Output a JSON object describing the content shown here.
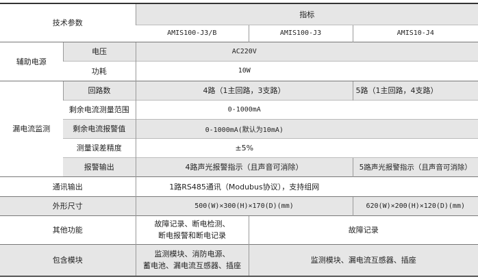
{
  "header": {
    "param": "技术参数",
    "indicator": "指标",
    "models": [
      "AMIS100-J3/B",
      "AMIS100-J3",
      "AMIS10-J4"
    ]
  },
  "aux_power": {
    "label": "辅助电源",
    "voltage_label": "电压",
    "voltage": "AC220V",
    "power_label": "功耗",
    "power": "10W"
  },
  "leakage": {
    "label": "漏电流监测",
    "loops_label": "回路数",
    "loops_a": "4路（1主回路，3支路）",
    "loops_b": "5路（1主回路，4支路）",
    "range_label": "剩余电流测量范围",
    "range": "0-1000mA",
    "alarm_value_label": "剩余电流报警值",
    "alarm_value": "0-1000mA(默认为10mA)",
    "accuracy_label": "测量误差精度",
    "accuracy": "±5%",
    "alarm_out_label": "报警输出",
    "alarm_out_a": "4路声光报警指示（且声音可消除）",
    "alarm_out_b": "5路声光报警指示（且声音可消除）"
  },
  "comm": {
    "label": "通讯输出",
    "value": "1路RS485通讯（Modubus协议），支持组网"
  },
  "size": {
    "label": "外形尺寸",
    "a": "500(W)×300(H)×170(D)(mm)",
    "b": "620(W)×200(H)×120(D)(mm)"
  },
  "other": {
    "label": "其他功能",
    "a1": "故障记录、断电检测、",
    "a2": "断电报警和断电记录",
    "b": "故障记录"
  },
  "modules": {
    "label": "包含模块",
    "a1": "监测模块、消防电源、",
    "a2": "蓄电池、漏电流互感器、插座",
    "b": "监测模块、漏电流互感器、插座"
  }
}
